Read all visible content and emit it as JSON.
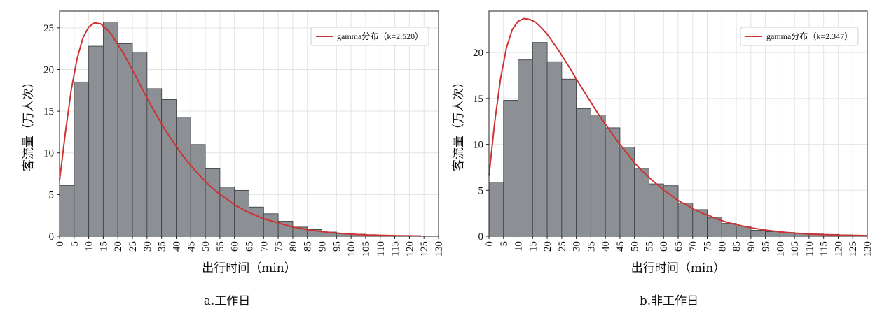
{
  "chart_data": [
    {
      "type": "bar",
      "caption": "a.工作日",
      "xlabel": "出行时间（min）",
      "ylabel": "客流量（万人次）",
      "xlim": [
        0,
        130
      ],
      "ylim": [
        0,
        27
      ],
      "xticks": [
        0,
        5,
        10,
        15,
        20,
        25,
        30,
        35,
        40,
        45,
        50,
        55,
        60,
        65,
        70,
        75,
        80,
        85,
        90,
        95,
        100,
        105,
        110,
        115,
        120,
        125,
        130
      ],
      "yticks": [
        0,
        5,
        10,
        15,
        20,
        25
      ],
      "grid": true,
      "legend_position": "top-right",
      "bin_width": 5,
      "bins_start": [
        0,
        5,
        10,
        15,
        20,
        25,
        30,
        35,
        40,
        45,
        50,
        55,
        60,
        65,
        70,
        75,
        80,
        85,
        90,
        95,
        100,
        105,
        110,
        115,
        120
      ],
      "values": [
        6.1,
        18.5,
        22.8,
        25.7,
        23.1,
        22.1,
        17.7,
        16.4,
        14.3,
        11.0,
        8.1,
        5.9,
        5.5,
        3.5,
        2.7,
        1.8,
        1.1,
        0.8,
        0.5,
        0.35,
        0.25,
        0.15,
        0.1,
        0.05,
        0.03
      ],
      "color_bars": "#8c9094",
      "curve": {
        "name": "gamma分布（k=2.520）",
        "color": "#cc3333",
        "x": [
          0,
          2,
          4,
          6,
          8,
          10,
          12,
          14,
          16,
          18,
          20,
          22,
          24,
          26,
          28,
          30,
          32,
          34,
          36,
          38,
          40,
          42,
          44,
          46,
          48,
          50,
          52,
          54,
          56,
          58,
          60,
          62,
          64,
          66,
          68,
          70,
          72,
          74,
          76,
          78,
          80,
          82,
          84,
          86,
          88,
          90,
          92,
          94,
          96,
          98,
          100,
          102,
          104,
          106,
          108,
          110,
          112,
          114,
          116,
          118,
          120,
          122,
          124
        ],
        "y": [
          6.7,
          12.4,
          17.5,
          21.3,
          23.8,
          25.1,
          25.6,
          25.5,
          24.9,
          24.1,
          23.0,
          21.9,
          20.6,
          19.3,
          17.9,
          16.6,
          15.3,
          14.1,
          12.9,
          11.8,
          10.8,
          9.8,
          8.9,
          8.1,
          7.3,
          6.6,
          5.9,
          5.3,
          4.8,
          4.3,
          3.8,
          3.4,
          3.0,
          2.7,
          2.4,
          2.1,
          1.9,
          1.7,
          1.5,
          1.3,
          1.1,
          1.0,
          0.85,
          0.75,
          0.65,
          0.55,
          0.48,
          0.41,
          0.35,
          0.3,
          0.26,
          0.22,
          0.19,
          0.16,
          0.14,
          0.12,
          0.1,
          0.08,
          0.07,
          0.06,
          0.05,
          0.04,
          0.03
        ]
      }
    },
    {
      "type": "bar",
      "caption": "b.非工作日",
      "xlabel": "出行时间（min）",
      "ylabel": "客流量（万人次）",
      "xlim": [
        0,
        130
      ],
      "ylim": [
        0,
        24.5
      ],
      "xticks": [
        0,
        5,
        10,
        15,
        20,
        25,
        30,
        35,
        40,
        45,
        50,
        55,
        60,
        65,
        70,
        75,
        80,
        85,
        90,
        95,
        100,
        105,
        110,
        115,
        120,
        125,
        130
      ],
      "yticks": [
        0,
        5,
        10,
        15,
        20
      ],
      "grid": true,
      "legend_position": "top-right",
      "bin_width": 5,
      "bins_start": [
        0,
        5,
        10,
        15,
        20,
        25,
        30,
        35,
        40,
        45,
        50,
        55,
        60,
        65,
        70,
        75,
        80,
        85,
        90,
        95,
        100,
        105,
        110,
        115,
        120,
        125
      ],
      "values": [
        5.9,
        14.8,
        19.2,
        21.1,
        19.0,
        17.1,
        13.9,
        13.2,
        11.8,
        9.7,
        7.4,
        5.7,
        5.5,
        3.6,
        2.9,
        2.0,
        1.4,
        1.1,
        0.65,
        0.5,
        0.4,
        0.3,
        0.25,
        0.2,
        0.15,
        0.1
      ],
      "color_bars": "#8c9094",
      "curve": {
        "name": "gamma分布（k=2.347）",
        "color": "#cc3333",
        "x": [
          0,
          2,
          4,
          6,
          8,
          10,
          12,
          14,
          16,
          18,
          20,
          22,
          24,
          26,
          28,
          30,
          32,
          34,
          36,
          38,
          40,
          42,
          44,
          46,
          48,
          50,
          52,
          54,
          56,
          58,
          60,
          62,
          64,
          66,
          68,
          70,
          72,
          74,
          76,
          78,
          80,
          82,
          84,
          86,
          88,
          90,
          92,
          94,
          96,
          98,
          100,
          102,
          104,
          106,
          108,
          110,
          112,
          114,
          116,
          118,
          120,
          122,
          124,
          126,
          128,
          130
        ],
        "y": [
          6.6,
          12.5,
          17.2,
          20.5,
          22.5,
          23.4,
          23.7,
          23.6,
          23.3,
          22.7,
          22.0,
          21.1,
          20.2,
          19.2,
          18.2,
          17.1,
          16.1,
          15.1,
          14.1,
          13.1,
          12.2,
          11.3,
          10.4,
          9.6,
          8.8,
          8.0,
          7.3,
          6.7,
          6.1,
          5.6,
          5.0,
          4.6,
          4.1,
          3.7,
          3.4,
          3.0,
          2.7,
          2.4,
          2.2,
          1.9,
          1.7,
          1.5,
          1.35,
          1.2,
          1.05,
          0.93,
          0.82,
          0.72,
          0.63,
          0.55,
          0.48,
          0.42,
          0.37,
          0.33,
          0.29,
          0.25,
          0.22,
          0.19,
          0.17,
          0.15,
          0.13,
          0.11,
          0.1,
          0.09,
          0.08,
          0.07
        ]
      }
    }
  ]
}
